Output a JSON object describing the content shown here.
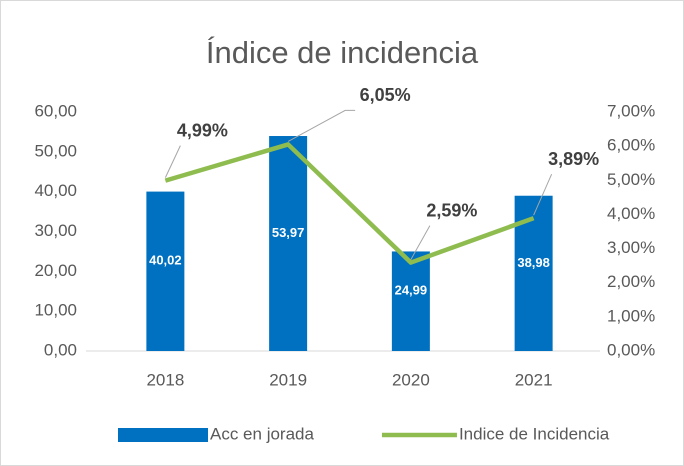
{
  "chart_data": {
    "type": "bar",
    "title": "Índice de incidencia",
    "categories": [
      "2018",
      "2019",
      "2020",
      "2021"
    ],
    "series": [
      {
        "name": "Acc en jorada",
        "type": "bar",
        "color": "#0070c0",
        "axis": "y",
        "values": [
          40.02,
          53.97,
          24.99,
          38.98
        ],
        "value_labels": [
          "40,02",
          "53,97",
          "24,99",
          "38,98"
        ]
      },
      {
        "name": "Indice de Incidencia",
        "type": "line",
        "color": "#8fbc4f",
        "axis": "y2",
        "values": [
          4.99,
          6.05,
          2.59,
          3.89
        ],
        "value_labels": [
          "4,99%",
          "6,05%",
          "2,59%",
          "3,89%"
        ]
      }
    ],
    "ylim": [
      0,
      60
    ],
    "yticks": [
      {
        "value": 0,
        "label": "0,00"
      },
      {
        "value": 10,
        "label": "10,00"
      },
      {
        "value": 20,
        "label": "20,00"
      },
      {
        "value": 30,
        "label": "30,00"
      },
      {
        "value": 40,
        "label": "40,00"
      },
      {
        "value": 50,
        "label": "50,00"
      },
      {
        "value": 60,
        "label": "60,00"
      }
    ],
    "y2lim": [
      0,
      7
    ],
    "y2ticks": [
      {
        "value": 0,
        "label": "0,00%"
      },
      {
        "value": 1,
        "label": "1,00%"
      },
      {
        "value": 2,
        "label": "2,00%"
      },
      {
        "value": 3,
        "label": "3,00%"
      },
      {
        "value": 4,
        "label": "4,00%"
      },
      {
        "value": 5,
        "label": "5,00%"
      },
      {
        "value": 6,
        "label": "6,00%"
      },
      {
        "value": 7,
        "label": "7,00%"
      }
    ],
    "grid": false,
    "legend": "bottom"
  }
}
